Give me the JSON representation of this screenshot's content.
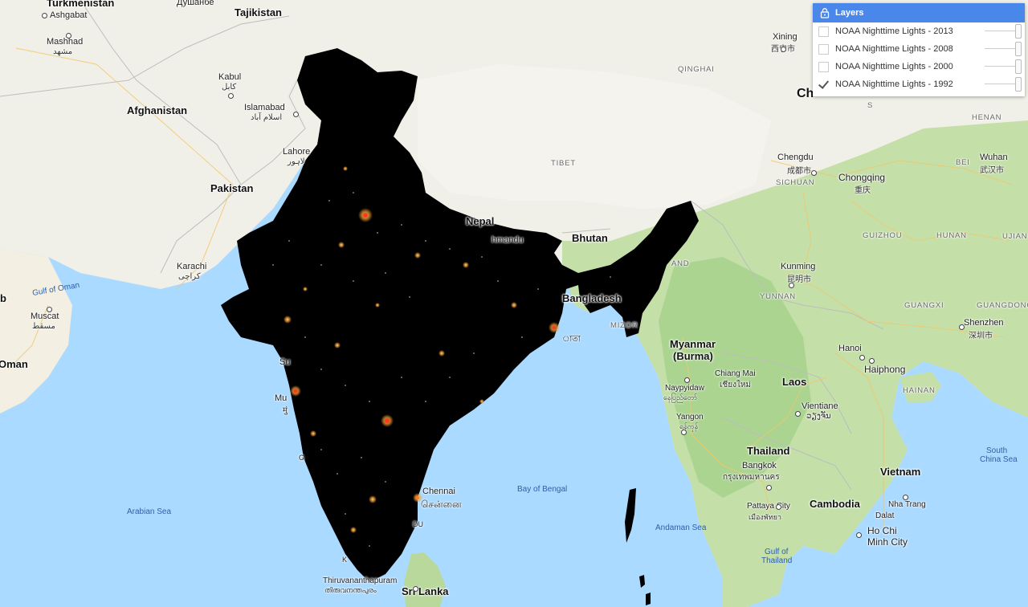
{
  "layers_panel": {
    "title": "Layers",
    "layers": [
      {
        "label": "NOAA Nighttime Lights - 2013",
        "checked": false,
        "opacity": 1.0
      },
      {
        "label": "NOAA Nighttime Lights - 2008",
        "checked": false,
        "opacity": 1.0
      },
      {
        "label": "NOAA Nighttime Lights - 2000",
        "checked": false,
        "opacity": 1.0
      },
      {
        "label": "NOAA Nighttime Lights - 1992",
        "checked": true,
        "opacity": 1.0
      }
    ]
  },
  "map": {
    "countries": {
      "turkmenistan": "Turkmenistan",
      "tajikistan": "Tajikistan",
      "afghanistan": "Afghanistan",
      "pakistan": "Pakistan",
      "nepal": "Nepal",
      "bhutan": "Bhutan",
      "bangladesh": "Bangladesh",
      "myanmar": "Myanmar",
      "burma": "(Burma)",
      "laos": "Laos",
      "thailand": "Thailand",
      "vietnam": "Vietnam",
      "cambodia": "Cambodia",
      "oman": "Oman",
      "china": "Ch",
      "sri_lanka": "Sri Lanka"
    },
    "cities": {
      "ashgabat": "Ashgabat",
      "dushanbe": "Душанбе",
      "mashhad": "Mashhad",
      "mashhad_native": "مشهد",
      "kabul": "Kabul",
      "kabul_native": "کابل",
      "islamabad": "Islamabad",
      "islamabad_native": "اسلام آباد",
      "lahore": "Lahore",
      "lahore_native": "لاہور",
      "karachi": "Karachi",
      "karachi_native": "کراچی",
      "muscat": "Muscat",
      "muscat_native": "مسقط",
      "xining": "Xining",
      "xining_native": "西宁市",
      "chengdu": "Chengdu",
      "chengdu_native": "成都市",
      "chongqing": "Chongqing",
      "chongqing_native": "重庆",
      "wuhan": "Wuhan",
      "wuhan_native": "武汉市",
      "kunming": "Kunming",
      "kunming_native": "昆明市",
      "shenzhen": "Shenzhen",
      "shenzhen_native": "深圳市",
      "hanoi": "Hanoi",
      "haiphong": "Haiphong",
      "vientiane": "Vientiane",
      "vientiane_native": "ວຽງຈັນ",
      "chiang_mai": "Chiang Mai",
      "chiang_mai_native": "เชียงใหม่",
      "naypyidaw": "Naypyidaw",
      "naypyidaw_native": "နေပြည်တော်",
      "yangon": "Yangon",
      "yangon_native": "ရန်ကုန်",
      "bangkok": "Bangkok",
      "bangkok_native": "กรุงเทพมหานคร",
      "pattaya": "Pattaya City",
      "pattaya_native": "เมืองพัทยา",
      "nha_trang": "Nha Trang",
      "dalat": "Dalat",
      "hcmc_1": "Ho Chi",
      "hcmc_2": "Minh City",
      "chennai": "Chennai",
      "chennai_native": "சென்னை",
      "kathmandu": "hmandu",
      "thiruvananthapuram": "Thiruvananthapuram",
      "thiruvananthapuram_native": "തിരുവനന്തപുരം",
      "mumbai_frag": "Mu",
      "mumbai_native_frag": "मुं",
      "surat_frag": "Su",
      "goa_frag": "G",
      "kochi_frag": "K",
      "madurai_frag": "DU",
      "kolkata_frag": "াতা"
    },
    "regions": {
      "tibet": "TIBET",
      "qinghai": "QINGHAI",
      "sichuan": "SICHUAN",
      "guizhou": "GUIZHOU",
      "hunan": "HUNAN",
      "henan": "HENAN",
      "yunnan": "YUNNAN",
      "guangxi": "GUANGXI",
      "guangdong": "GUANGDONG",
      "hainan": "HAINAN",
      "mizoram": "MIZOR",
      "nagaland_frag": "AND",
      "ujian_frag": "UJIAN",
      "hubei_frag": "BEI",
      "shaanxi_frag": "S"
    },
    "water": {
      "gulf_of_oman": "Gulf of Oman",
      "arabian_sea": "Arabian Sea",
      "bay_of_bengal": "Bay of Bengal",
      "andaman_sea": "Andaman Sea",
      "gulf_of_thailand_1": "Gulf of",
      "gulf_of_thailand_2": "Thailand",
      "south_china_sea_1": "South",
      "south_china_sea_2": "China Sea"
    },
    "edge_fragments": {
      "oman_frag": "man",
      "b_frag": "b"
    }
  }
}
